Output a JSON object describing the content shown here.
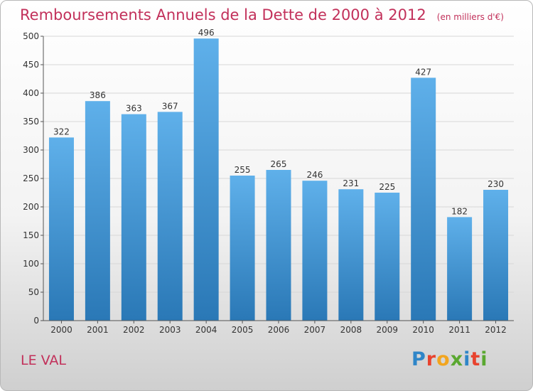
{
  "chart_data": {
    "type": "bar",
    "title": "Remboursements Annuels de la Dette de 2000 à 2012",
    "subtitle": "(en milliers d'€)",
    "categories": [
      "2000",
      "2001",
      "2002",
      "2003",
      "2004",
      "2005",
      "2006",
      "2007",
      "2008",
      "2009",
      "2010",
      "2011",
      "2012"
    ],
    "values": [
      322,
      386,
      363,
      367,
      496,
      255,
      265,
      246,
      231,
      225,
      427,
      182,
      230
    ],
    "ylim": [
      0,
      500
    ],
    "yticks": [
      0,
      50,
      100,
      150,
      200,
      250,
      300,
      350,
      400,
      450,
      500
    ],
    "grid": true,
    "bar_color_top": "#5fb0ea",
    "bar_color_bottom": "#2a78b6"
  },
  "footer": {
    "commune": "LE VAL"
  },
  "brand": {
    "letters": [
      "P",
      "r",
      "o",
      "x",
      "i",
      "t",
      "i"
    ],
    "colors": [
      "#2f86c8",
      "#e8432e",
      "#f2a51f",
      "#5aa830",
      "#2f86c8",
      "#e8432e",
      "#5aa830"
    ]
  }
}
